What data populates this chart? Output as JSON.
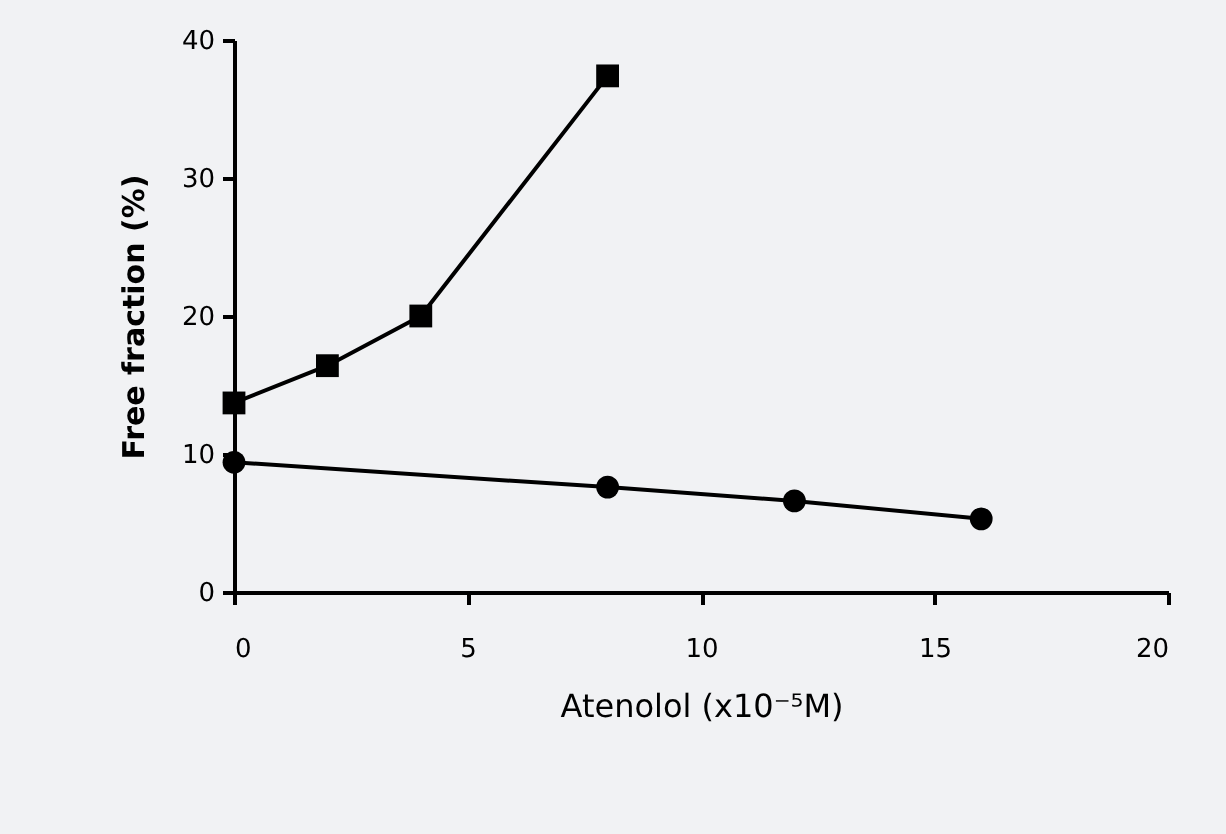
{
  "chart_data": {
    "type": "line",
    "xlabel": "Atenolol (x10⁻⁵M)",
    "ylabel": "Free fraction  (%)",
    "series": [
      {
        "color": "#000000",
        "marker": "square",
        "x": [
          0,
          2,
          4,
          8
        ],
        "values": [
          13.7,
          16.4,
          20.0,
          37.4
        ]
      },
      {
        "color": "#000000",
        "marker": "circle",
        "x": [
          0,
          8,
          12,
          16
        ],
        "values": [
          9.4,
          7.6,
          6.6,
          5.3
        ]
      }
    ],
    "xlim": [
      0,
      20
    ],
    "xticks": [
      0,
      5,
      10,
      15,
      20
    ],
    "ylim": [
      0,
      40
    ],
    "yticks": [
      0,
      10,
      20,
      30,
      40
    ],
    "grid": false,
    "line_style": "solid"
  }
}
